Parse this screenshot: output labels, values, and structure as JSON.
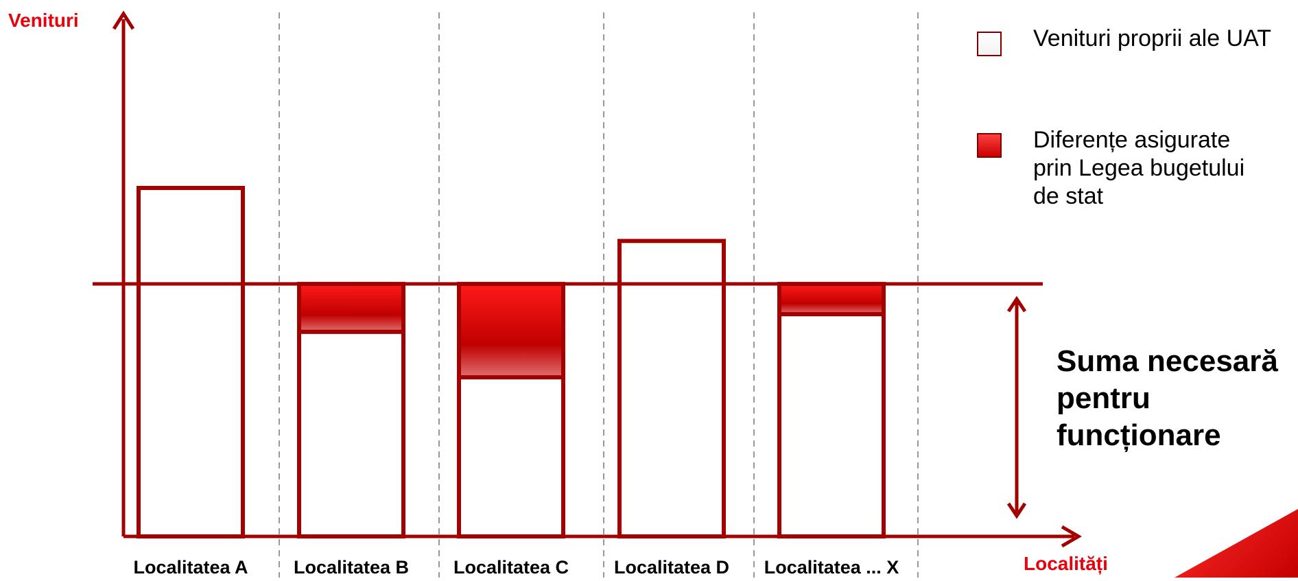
{
  "chart_data": {
    "type": "bar",
    "ylabel": "Venituri",
    "xlabel": "Localități",
    "categories": [
      "Localitatea A",
      "Localitatea B",
      "Localitatea C",
      "Localitatea D",
      "Localitatea ... X"
    ],
    "series": [
      {
        "name": "Venituri proprii ale UAT",
        "values": [
          1.38,
          0.81,
          0.63,
          1.17,
          0.88
        ]
      },
      {
        "name": "Diferențe asigurate prin Legea bugetului de stat",
        "values": [
          0,
          0.19,
          0.37,
          0,
          0.12
        ]
      }
    ],
    "threshold": 1.0,
    "threshold_label": "Suma necesară pentru funcționare",
    "ylim": [
      0,
      2.07
    ],
    "grid": false,
    "legend": "top-right"
  },
  "colors": {
    "frame": "#a30000",
    "accent": "#e8000b",
    "fill_top": "#ff1a1a",
    "fill_bottom": "#b80000",
    "divider": "#999999"
  },
  "legend": {
    "own_label": "Venituri proprii ale UAT",
    "diff_label": "Diferențe asigurate prin Legea bugetului de stat"
  },
  "annotation": {
    "text": "Suma necesară pentru funcționare"
  }
}
